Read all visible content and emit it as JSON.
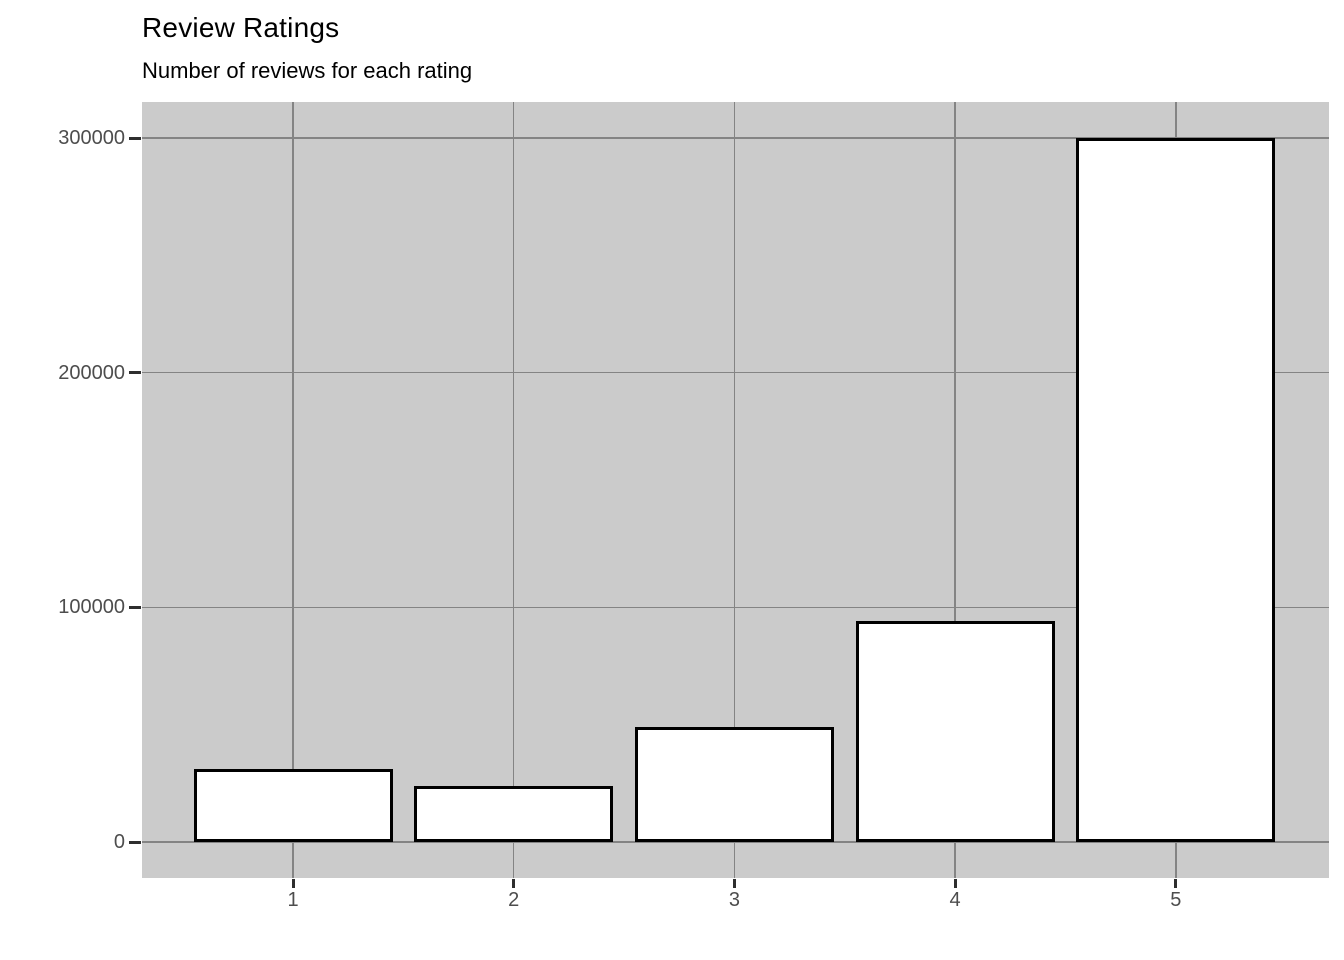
{
  "chart_data": {
    "type": "bar",
    "title": "Review Ratings",
    "subtitle": "Number of reviews for each rating",
    "xlabel": "",
    "ylabel": "",
    "categories": [
      "1",
      "2",
      "3",
      "4",
      "5"
    ],
    "values": [
      31000,
      24000,
      49000,
      94000,
      300000
    ],
    "ylim": [
      0,
      300000
    ],
    "yticks": [
      0,
      100000,
      200000,
      300000
    ],
    "ytick_labels": [
      "0",
      "100000",
      "200000",
      "300000"
    ],
    "grid": "major-only",
    "legend_position": "none",
    "colors": {
      "panel_background": "#CBCBCB",
      "gridline": "#848484",
      "bar_fill": "#FFFFFF",
      "bar_stroke": "#000000",
      "tick_mark": "#2E2E2E",
      "tick_label": "#4D4D4D",
      "title": "#000000",
      "page_background": "#FFFFFF"
    }
  }
}
